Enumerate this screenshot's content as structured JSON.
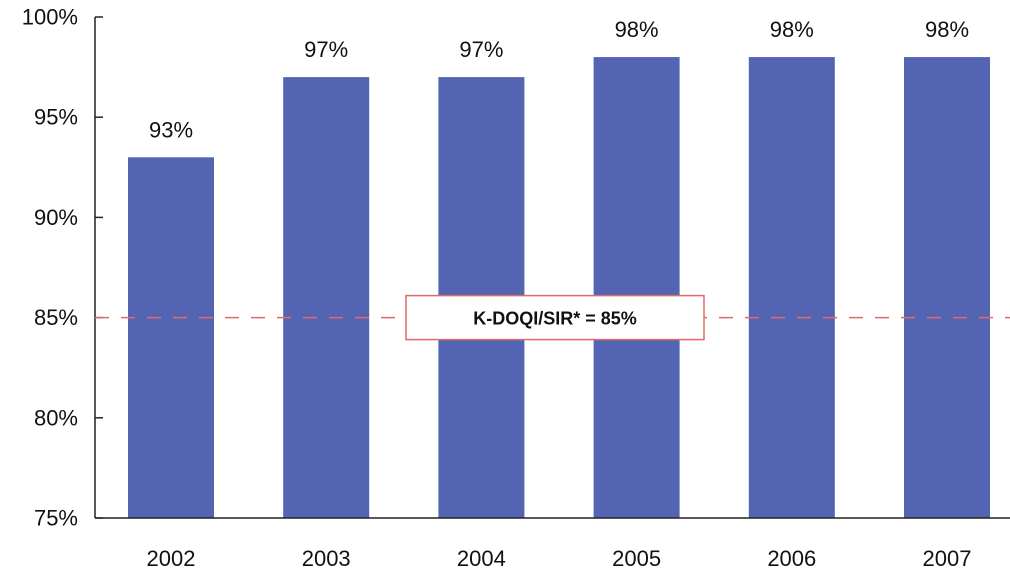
{
  "chart_data": {
    "type": "bar",
    "categories": [
      "2002",
      "2003",
      "2004",
      "2005",
      "2006",
      "2007"
    ],
    "values": [
      93,
      97,
      97,
      98,
      98,
      98
    ],
    "value_labels": [
      "93%",
      "97%",
      "97%",
      "98%",
      "98%",
      "98%"
    ],
    "ylim": [
      75,
      100
    ],
    "yticks": [
      75,
      80,
      85,
      90,
      95,
      100
    ],
    "ytick_labels": [
      "75%",
      "80%",
      "85%",
      "90%",
      "95%",
      "100%"
    ],
    "title": "",
    "xlabel": "",
    "ylabel": "",
    "grid": false,
    "bar_color": "#5364b2",
    "reference_line": {
      "value": 85,
      "label": "K-DOQI/SIR* = 85%",
      "color": "#e06a66",
      "style": "dashed"
    }
  }
}
